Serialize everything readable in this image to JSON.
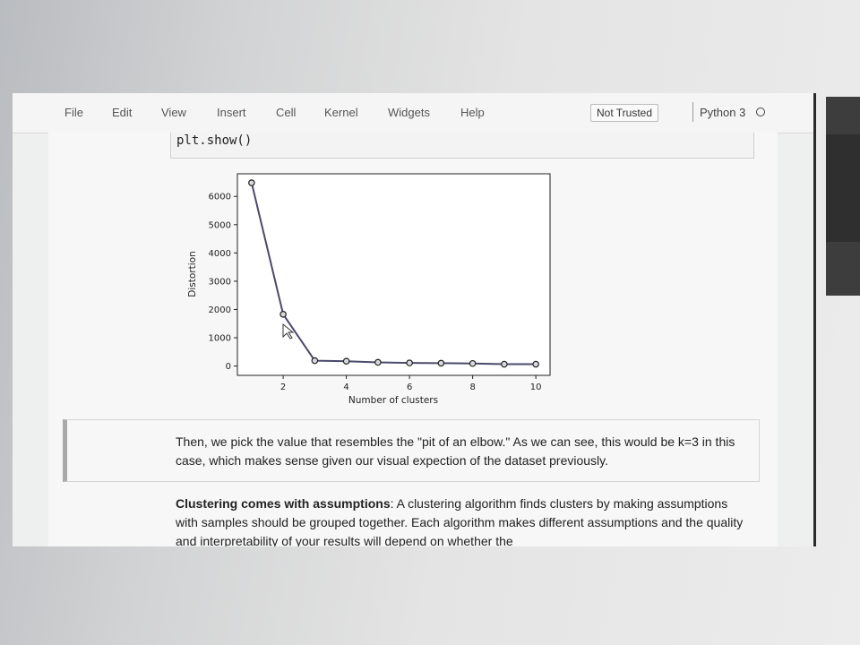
{
  "menu": {
    "file": "File",
    "edit": "Edit",
    "view": "View",
    "insert": "Insert",
    "cell": "Cell",
    "kernel": "Kernel",
    "widgets": "Widgets",
    "help": "Help"
  },
  "status": {
    "trust": "Not Trusted",
    "kernel": "Python 3"
  },
  "code": {
    "line": "plt.show()"
  },
  "chart_data": {
    "type": "line",
    "x": [
      1,
      2,
      3,
      4,
      5,
      6,
      7,
      8,
      9,
      10
    ],
    "y": [
      6480,
      1830,
      190,
      170,
      130,
      110,
      100,
      90,
      65,
      65
    ],
    "xlabel": "Number of clusters",
    "ylabel": "Distortion",
    "xticks": [
      2,
      4,
      6,
      8,
      10
    ],
    "yticks": [
      0,
      1000,
      2000,
      3000,
      4000,
      5000,
      6000
    ],
    "xlim": [
      0.55,
      10.45
    ],
    "ylim": [
      -330,
      6800
    ],
    "marker": "circle",
    "line_color": "#4a4a6a",
    "grid": false
  },
  "markdown": {
    "elbow_text": "Then, we pick the value that resembles the \"pit of an elbow.\" As we can see, this would be k=3 in this case, which makes sense given our visual expection of the dataset previously."
  },
  "assumptions": {
    "heading": "Clustering comes with assumptions",
    "body": ": A clustering algorithm finds clusters by making assumptions with samples should be grouped together. Each algorithm makes different assumptions and the quality and interpretability of your results will depend on whether the"
  }
}
